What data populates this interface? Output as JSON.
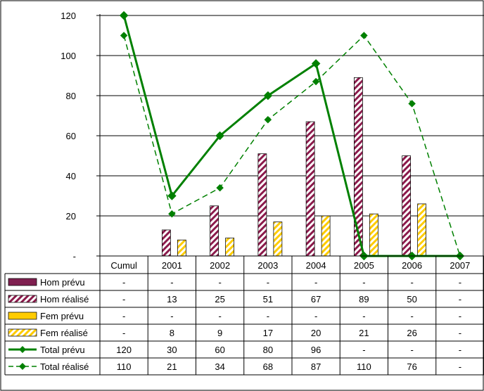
{
  "chart_data": {
    "type": "bar",
    "categories": [
      "Cumul",
      "2001",
      "2002",
      "2003",
      "2004",
      "2005",
      "2006",
      "2007"
    ],
    "ylim": [
      0,
      120
    ],
    "yticks": [
      0,
      20,
      40,
      60,
      80,
      100,
      120
    ],
    "ytick_labels": [
      "-",
      "20",
      "40",
      "60",
      "80",
      "100",
      "120"
    ],
    "grid": true,
    "legend": "data-table",
    "series": [
      {
        "name": "Hom prévu",
        "kind": "bar",
        "color": "#7f1f4f",
        "pattern": "solid",
        "values": [
          null,
          null,
          null,
          null,
          null,
          null,
          null,
          null
        ],
        "labels": [
          "-",
          "-",
          "-",
          "-",
          "-",
          "-",
          "-",
          "-"
        ]
      },
      {
        "name": "Hom réalisé",
        "kind": "bar",
        "color": "#8b1a4b",
        "pattern": "hatch",
        "values": [
          null,
          13,
          25,
          51,
          67,
          89,
          50,
          null
        ],
        "labels": [
          "-",
          "13",
          "25",
          "51",
          "67",
          "89",
          "50",
          "-"
        ]
      },
      {
        "name": "Fem prévu",
        "kind": "bar",
        "color": "#ffcc00",
        "pattern": "solid",
        "values": [
          null,
          null,
          null,
          null,
          null,
          null,
          null,
          null
        ],
        "labels": [
          "-",
          "-",
          "-",
          "-",
          "-",
          "-",
          "-",
          "-"
        ]
      },
      {
        "name": "Fem réalisé",
        "kind": "bar",
        "color": "#ffcc00",
        "pattern": "hatch",
        "values": [
          null,
          8,
          9,
          17,
          20,
          21,
          26,
          null
        ],
        "labels": [
          "-",
          "8",
          "9",
          "17",
          "20",
          "21",
          "26",
          "-"
        ]
      },
      {
        "name": "Total prévu",
        "kind": "line",
        "color": "#008000",
        "dash": "solid",
        "values": [
          120,
          30,
          60,
          80,
          96,
          0,
          0,
          0
        ],
        "labels": [
          "120",
          "30",
          "60",
          "80",
          "96",
          "-",
          "-",
          "-"
        ]
      },
      {
        "name": "Total réalisé",
        "kind": "line",
        "color": "#008000",
        "dash": "dashed",
        "values": [
          110,
          21,
          34,
          68,
          87,
          110,
          76,
          0
        ],
        "labels": [
          "110",
          "21",
          "34",
          "68",
          "87",
          "110",
          "76",
          "-"
        ]
      }
    ]
  }
}
